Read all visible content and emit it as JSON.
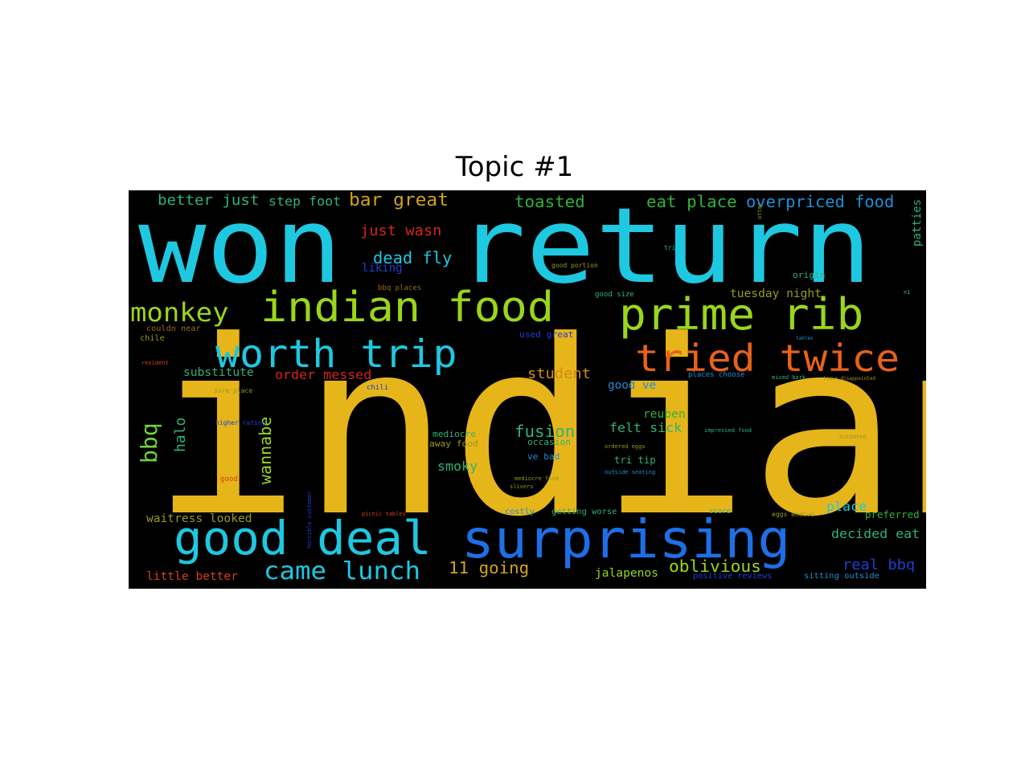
{
  "title": "Topic #1",
  "chart_data": {
    "type": "wordcloud",
    "title": "Topic #1",
    "words": [
      {
        "text": "indian",
        "color": "#e6b51a"
      },
      {
        "text": "won",
        "color": "#1ec8e0"
      },
      {
        "text": "return",
        "color": "#1ec8e0"
      },
      {
        "text": "surprising",
        "color": "#1e6fe6"
      },
      {
        "text": "indian food",
        "color": "#9ad61a"
      },
      {
        "text": "prime rib",
        "color": "#9ad61a"
      },
      {
        "text": "good deal",
        "color": "#1ec8e0"
      },
      {
        "text": "worth trip",
        "color": "#1ec8e0"
      },
      {
        "text": "tried twice",
        "color": "#e8621a"
      },
      {
        "text": "monkey",
        "color": "#9ad61a"
      },
      {
        "text": "came lunch",
        "color": "#1ec8e0"
      },
      {
        "text": "bbq",
        "color": "#6ed23a"
      },
      {
        "text": "bar great",
        "color": "#d1a31a"
      },
      {
        "text": "better just",
        "color": "#2fb37a"
      },
      {
        "text": "step foot",
        "color": "#2fb37a"
      },
      {
        "text": "toasted",
        "color": "#2fb33a"
      },
      {
        "text": "eat place",
        "color": "#2fb33a"
      },
      {
        "text": "overpriced food",
        "color": "#1e8fd6"
      },
      {
        "text": "just wasn",
        "color": "#d6241a"
      },
      {
        "text": "dead fly",
        "color": "#1ec8e0"
      },
      {
        "text": "liking",
        "color": "#1e3fd6"
      },
      {
        "text": "oblivious",
        "color": "#9ad61a"
      },
      {
        "text": "11 going",
        "color": "#d1a31a"
      },
      {
        "text": "fusion",
        "color": "#2fb37a"
      },
      {
        "text": "wannabe",
        "color": "#9ad61a"
      },
      {
        "text": "halo",
        "color": "#2fb37a"
      },
      {
        "text": "student",
        "color": "#d18a1a"
      },
      {
        "text": "order messed",
        "color": "#d6241a"
      },
      {
        "text": "substitute",
        "color": "#2fb37a"
      },
      {
        "text": "tuesday night",
        "color": "#9a9a1a"
      },
      {
        "text": "reuben",
        "color": "#2fb33a"
      },
      {
        "text": "felt sick",
        "color": "#2fb37a"
      },
      {
        "text": "good ve",
        "color": "#1e8fd6"
      },
      {
        "text": "place",
        "color": "#1ec8e0"
      },
      {
        "text": "decided eat",
        "color": "#2fb37a"
      },
      {
        "text": "real bbq",
        "color": "#1e3fd6"
      },
      {
        "text": "jalapenos",
        "color": "#9ad61a"
      },
      {
        "text": "waitress looked",
        "color": "#9a9a1a"
      },
      {
        "text": "little better",
        "color": "#d6401a"
      },
      {
        "text": "smoky",
        "color": "#2fb37a"
      },
      {
        "text": "preferred",
        "color": "#2fb33a"
      },
      {
        "text": "patties",
        "color": "#2fb37a"
      },
      {
        "text": "tri tip",
        "color": "#2fb37a"
      },
      {
        "text": "sitting outside",
        "color": "#1e8fd6"
      },
      {
        "text": "positive reviews",
        "color": "#1e3fd6"
      },
      {
        "text": "origin",
        "color": "#2fb37a"
      },
      {
        "text": "used great",
        "color": "#1e3fd6"
      },
      {
        "text": "getting worse",
        "color": "#2fb37a"
      },
      {
        "text": "costly",
        "color": "#1e8fd6"
      },
      {
        "text": "bbq places",
        "color": "#9a6a1a"
      },
      {
        "text": "good portion",
        "color": "#9a9a1a"
      },
      {
        "text": "good size",
        "color": "#2fb37a"
      },
      {
        "text": "places choose",
        "color": "#1e8fd6"
      },
      {
        "text": "mediocre",
        "color": "#2fb37a"
      },
      {
        "text": "away food",
        "color": "#9a9a1a"
      },
      {
        "text": "occasion",
        "color": "#2fb37a"
      },
      {
        "text": "ve bad",
        "color": "#1e8fd6"
      },
      {
        "text": "chili",
        "color": "#1e3fd6"
      },
      {
        "text": "higher rating",
        "color": "#1e3fd6"
      },
      {
        "text": "sure place",
        "color": "#9a9a1a"
      },
      {
        "text": "couldn near",
        "color": "#9a6a1a"
      },
      {
        "text": "chile",
        "color": "#9a9a1a"
      },
      {
        "text": "resident",
        "color": "#d6401a"
      },
      {
        "text": "good",
        "color": "#d6401a"
      },
      {
        "text": "mediocre food",
        "color": "#9a9a1a"
      },
      {
        "text": "slivers",
        "color": "#9a9a1a"
      },
      {
        "text": "ordered eggs",
        "color": "#9a9a1a"
      },
      {
        "text": "outside seating",
        "color": "#1e8fd6"
      },
      {
        "text": "impressed food",
        "color": "#2fb37a"
      },
      {
        "text": "outdated",
        "color": "#9a9a1a"
      },
      {
        "text": "score",
        "color": "#2fb37a"
      },
      {
        "text": "eggs endive",
        "color": "#9a9a1a"
      },
      {
        "text": "picnic tables",
        "color": "#d6401a"
      },
      {
        "text": "horrible customer",
        "color": "#1e3fd6"
      },
      {
        "text": "mixed bark",
        "color": "#2fb37a"
      },
      {
        "text": "leave disappointed",
        "color": "#9a9a1a"
      },
      {
        "text": "tri",
        "color": "#2fb37a"
      },
      {
        "text": "e1",
        "color": "#2fb37a"
      },
      {
        "text": "otter",
        "color": "#9a9a1a"
      },
      {
        "text": "tables",
        "color": "#1e8fd6"
      }
    ]
  }
}
